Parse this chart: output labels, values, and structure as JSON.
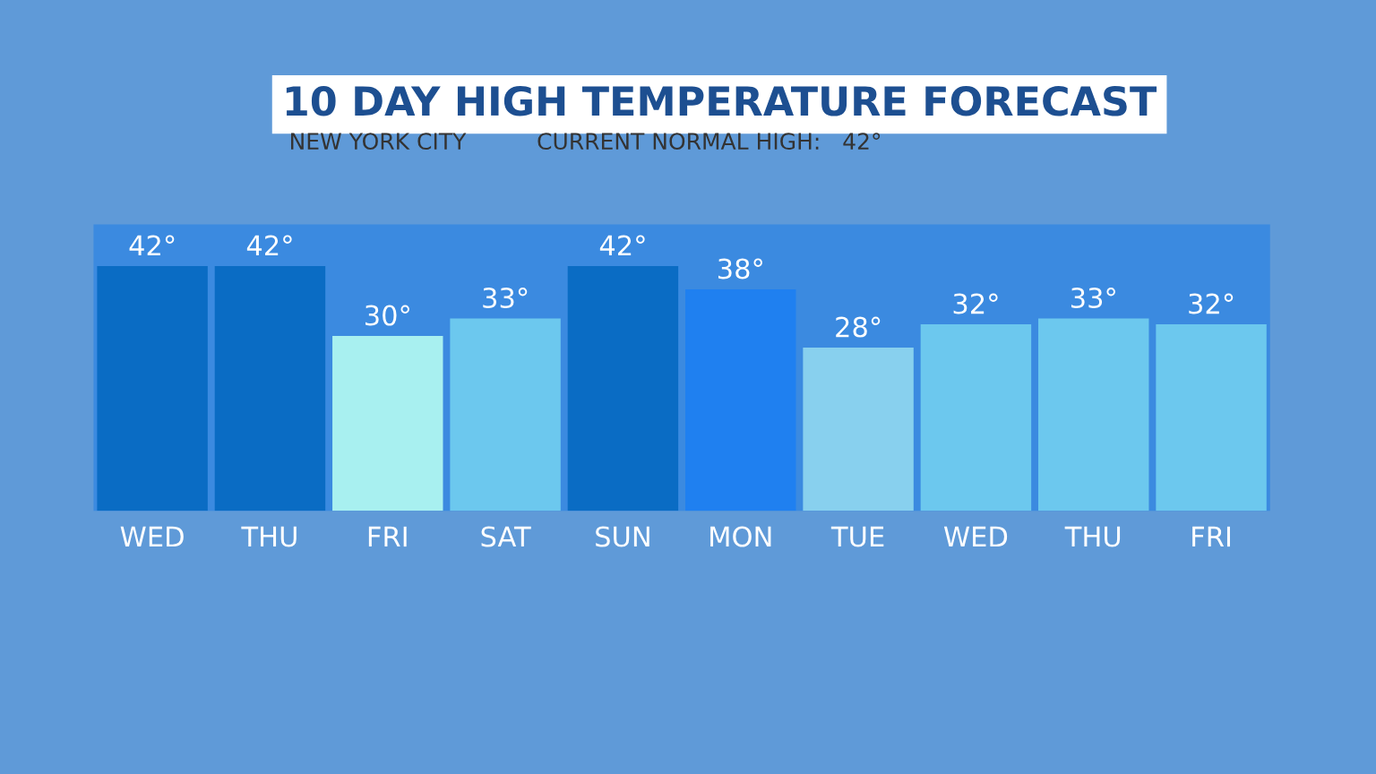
{
  "chart_data": {
    "type": "bar",
    "title": "10 DAY HIGH TEMPERATURE FORECAST",
    "subtitle": "NEW YORK CITY",
    "annotations": [
      "CURRENT NORMAL HIGH:   42°"
    ],
    "categories": [
      "WED",
      "THU",
      "FRI",
      "SAT",
      "SUN",
      "MON",
      "TUE",
      "WED",
      "THU",
      "FRI"
    ],
    "values": [
      42,
      42,
      30,
      33,
      42,
      38,
      28,
      32,
      33,
      32
    ],
    "value_labels": [
      "42°",
      "42°",
      "30°",
      "33°",
      "42°",
      "38°",
      "28°",
      "32°",
      "33°",
      "32°"
    ],
    "colors": [
      "#0a6cc4",
      "#0a6cc4",
      "#a8f0f0",
      "#6cc8ee",
      "#0a6cc4",
      "#1f80f0",
      "#88d0ee",
      "#6cc8ee",
      "#6cc8ee",
      "#6cc8ee"
    ],
    "grid": false,
    "legend": false
  }
}
